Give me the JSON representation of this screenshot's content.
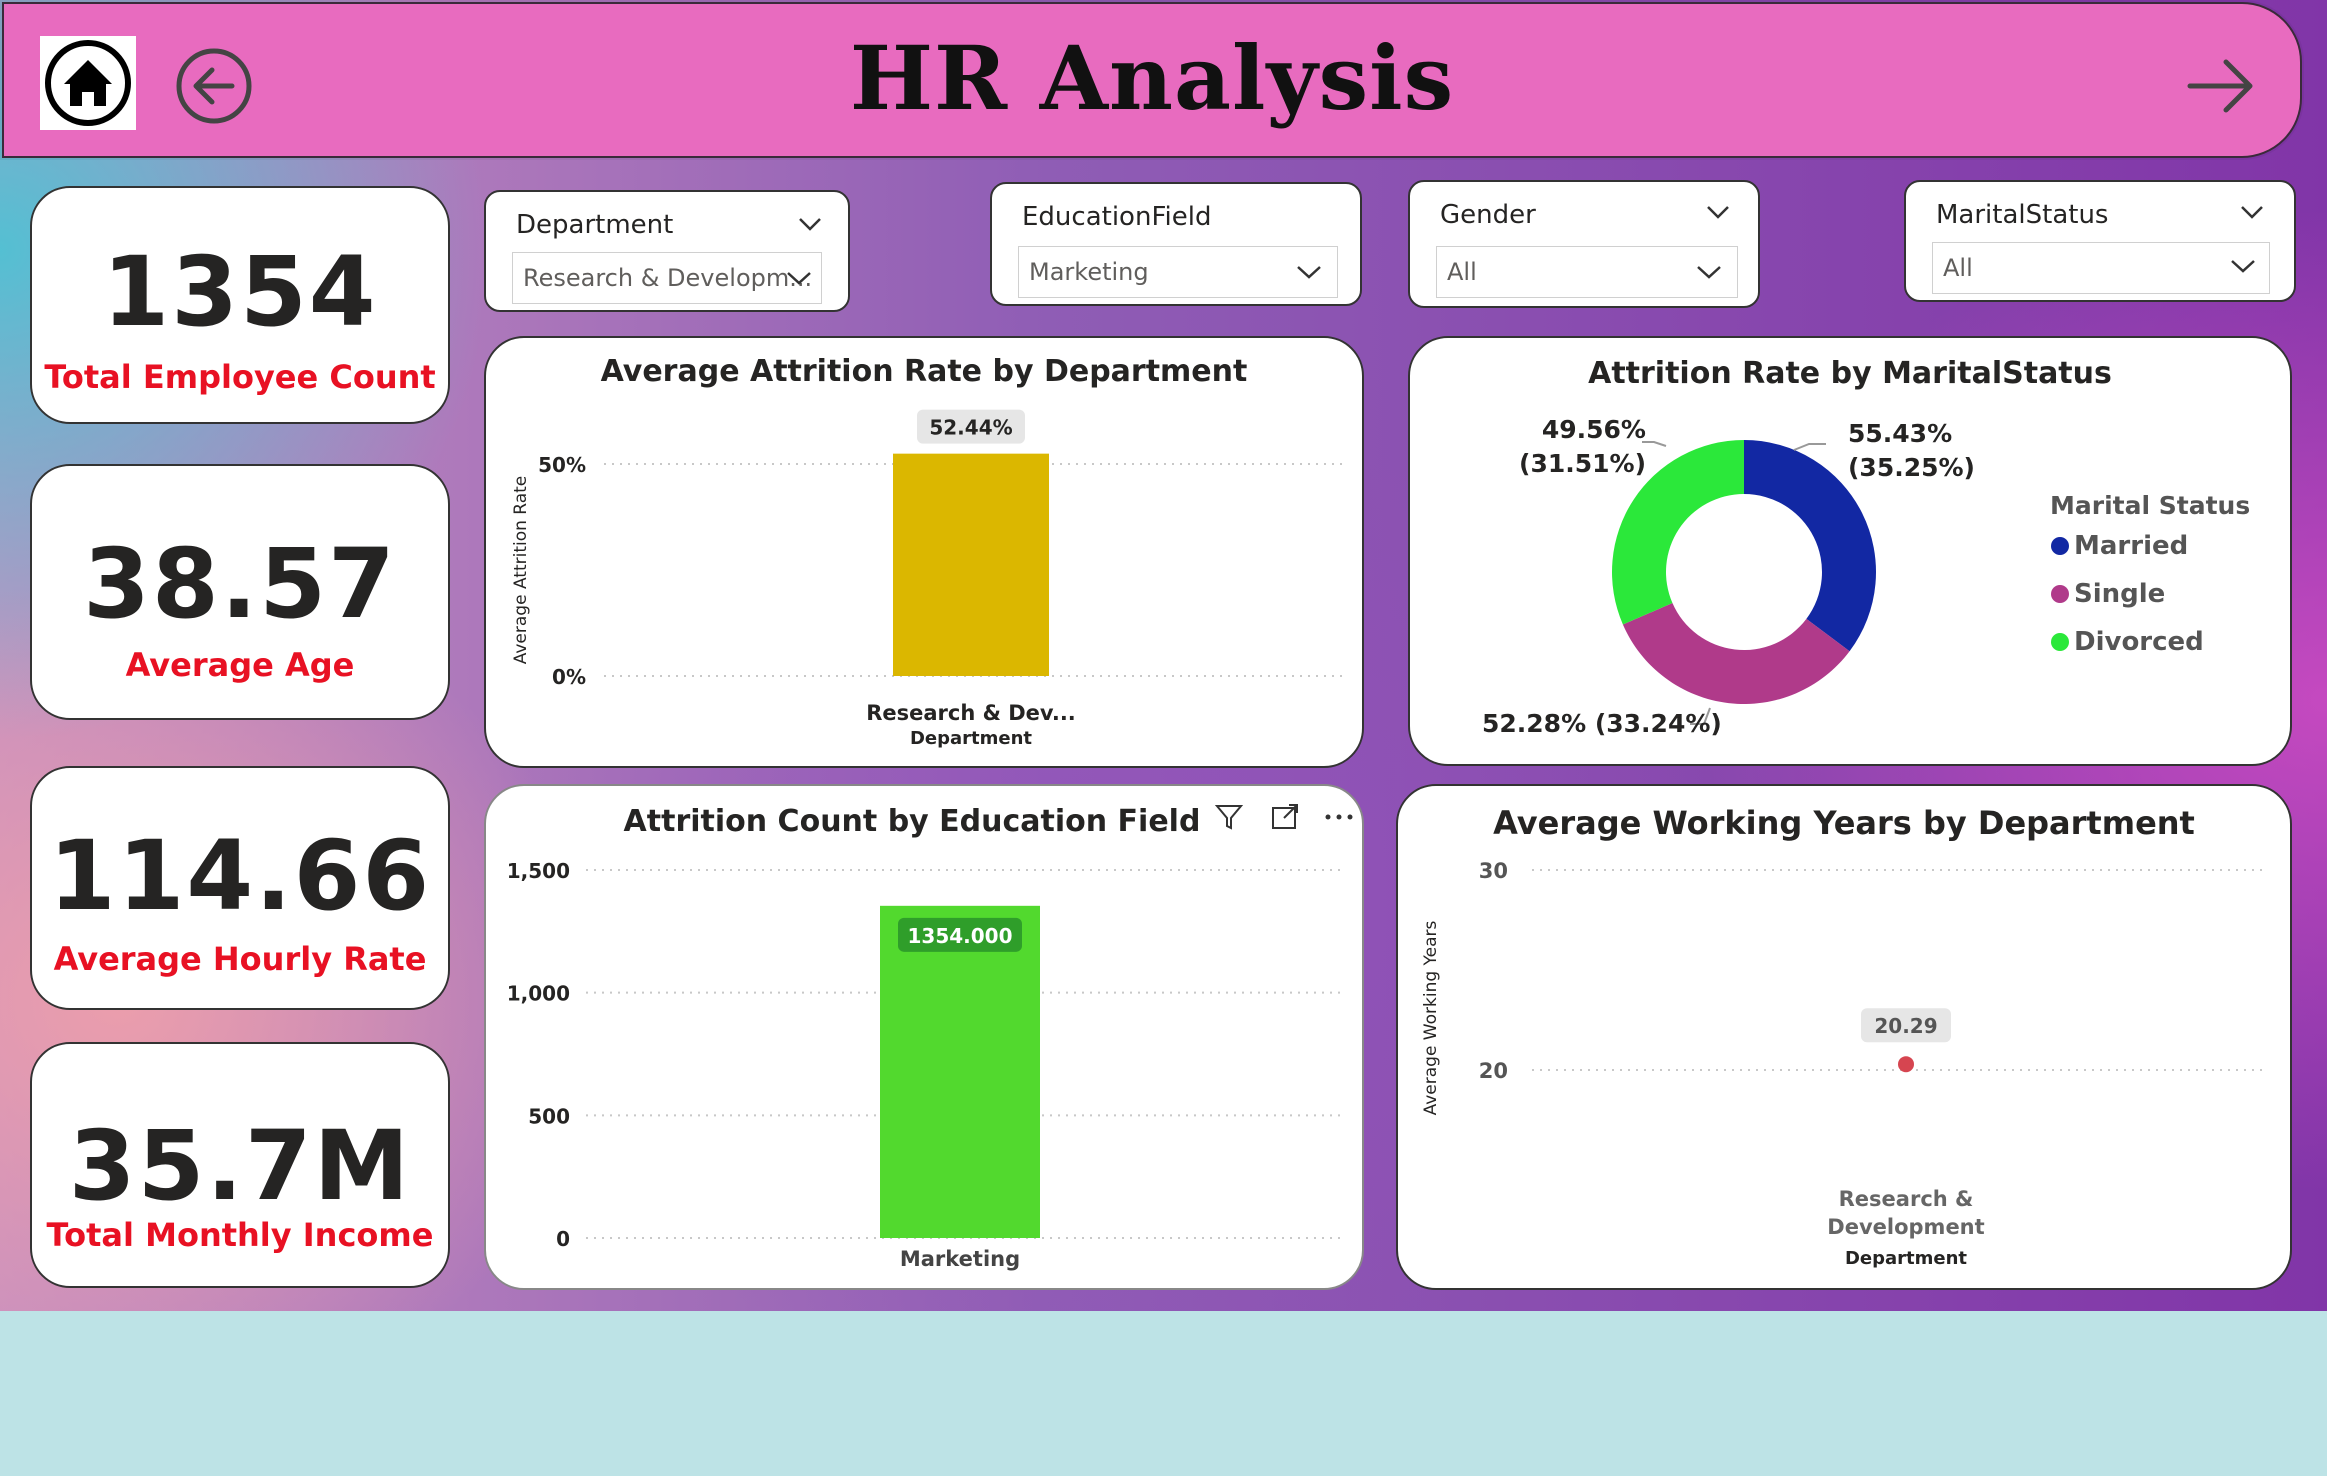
{
  "header": {
    "title": "HR Analysis"
  },
  "kpis": [
    {
      "value": "1354",
      "label": "Total Employee Count"
    },
    {
      "value": "38.57",
      "label": "Average Age"
    },
    {
      "value": "114.66",
      "label": "Average Hourly Rate"
    },
    {
      "value": "35.7M",
      "label": "Total Monthly Income"
    }
  ],
  "slicers": {
    "department": {
      "title": "Department",
      "value": "Research & Developm..."
    },
    "education_field": {
      "title": "EducationField",
      "value": "Marketing"
    },
    "gender": {
      "title": "Gender",
      "value": "All"
    },
    "marital_status": {
      "title": "MaritalStatus",
      "value": "All"
    }
  },
  "colors": {
    "header_bg": "#e86bbf",
    "kpi_label": "#e81123",
    "bar_dept": "#dbb700",
    "bar_edu": "#52d92e",
    "married": "#1228a3",
    "single": "#b03a8a",
    "divorced": "#2be83a",
    "point": "#d64550"
  },
  "chart_data": [
    {
      "type": "bar",
      "title": "Average Attrition Rate by Department",
      "categories": [
        "Research & Dev..."
      ],
      "values": [
        52.44
      ],
      "value_labels": [
        "52.44%"
      ],
      "xlabel": "Department",
      "ylabel": "Average Attrition Rate",
      "ylim": [
        0,
        50
      ],
      "yticks": [
        "0%",
        "50%"
      ],
      "grid": true
    },
    {
      "type": "pie",
      "title": "Attrition Rate by MaritalStatus",
      "legend_title": "Marital Status",
      "legend_position": "right",
      "slices": [
        {
          "name": "Married",
          "value": 55.43,
          "label_top": "55.43%",
          "label_bottom": "(35.25%)"
        },
        {
          "name": "Single",
          "value": 52.28,
          "label_top": "52.28% (33.24%)",
          "label_bottom": ""
        },
        {
          "name": "Divorced",
          "value": 49.56,
          "label_top": "49.56%",
          "label_bottom": "(31.51%)"
        }
      ]
    },
    {
      "type": "bar",
      "title": "Attrition Count by Education Field",
      "categories": [
        "Marketing"
      ],
      "values": [
        1354
      ],
      "value_labels": [
        "1354.000"
      ],
      "xlabel": "",
      "ylabel": "",
      "ylim": [
        0,
        1500
      ],
      "yticks": [
        "0",
        "500",
        "1,000",
        "1,500"
      ],
      "grid": true
    },
    {
      "type": "scatter",
      "title": "Average Working Years by Department",
      "categories": [
        "Research & Development"
      ],
      "category_lines": [
        "Research &",
        "Development"
      ],
      "values": [
        20.29
      ],
      "value_labels": [
        "20.29"
      ],
      "xlabel": "Department",
      "ylabel": "Average Working Years",
      "ylim": [
        20,
        30
      ],
      "yticks": [
        "20",
        "30"
      ],
      "grid": true
    }
  ]
}
